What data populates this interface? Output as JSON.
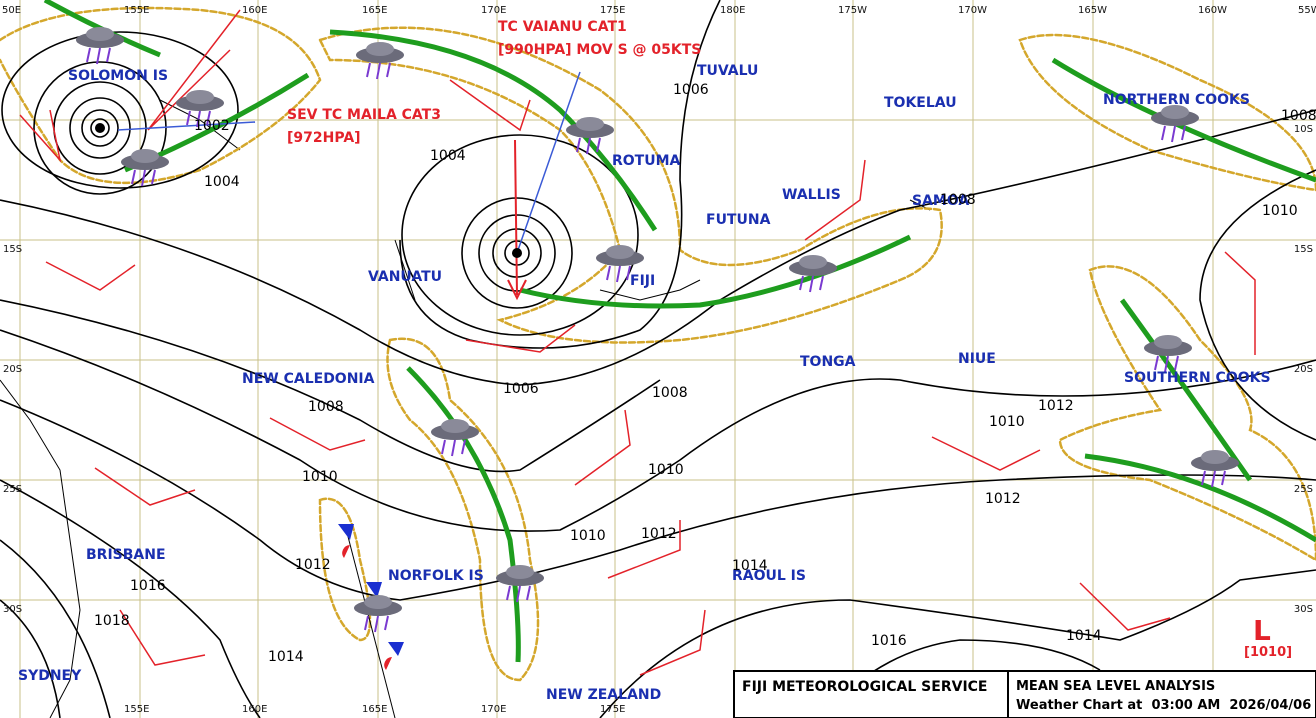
{
  "footer": {
    "agency": "FIJI METEOROLOGICAL SERVICE",
    "product": "MEAN SEA LEVEL ANALYSIS",
    "valid": "Weather Chart at  03:00 AM  2026/04/06"
  },
  "grid_labels": {
    "top": [
      "50E",
      "155E",
      "160E",
      "165E",
      "170E",
      "175E",
      "180E",
      "175W",
      "170W",
      "165W",
      "160W",
      "55W"
    ],
    "bottom": [
      "155E",
      "160E",
      "165E",
      "170E",
      "175E"
    ],
    "left": [
      "15S",
      "20S",
      "25S",
      "30S"
    ],
    "right": [
      "10S",
      "15S",
      "20S",
      "25S",
      "30S"
    ]
  },
  "places": [
    "SOLOMON IS",
    "TUVALU",
    "TOKELAU",
    "NORTHERN COOKS",
    "ROTUMA",
    "WALLIS",
    "FUTUNA",
    "SAMOA",
    "VANUATU",
    "FIJI",
    "TONGA",
    "NIUE",
    "NEW CALEDONIA",
    "SOUTHERN COOKS",
    "BRISBANE",
    "NORFOLK IS",
    "RAOUL IS",
    "NEW ZEALAND",
    "SYDNEY"
  ],
  "cyclones": [
    {
      "name": "TC VAIANU CAT1",
      "detail": "[990HPA] MOV S @ 05KTS"
    },
    {
      "name": "SEV TC MAILA CAT3",
      "detail": "[972HPA]"
    }
  ],
  "isobar_labels": [
    "1002",
    "1004",
    "1004",
    "1006",
    "1006",
    "1008",
    "1008",
    "1008",
    "1008",
    "1010",
    "1010",
    "1010",
    "1010",
    "1010",
    "1012",
    "1012",
    "1012",
    "1012",
    "1014",
    "1014",
    "1014",
    "1016",
    "1016",
    "1018"
  ],
  "low": {
    "symbol": "L",
    "pressure": "[1010]"
  }
}
